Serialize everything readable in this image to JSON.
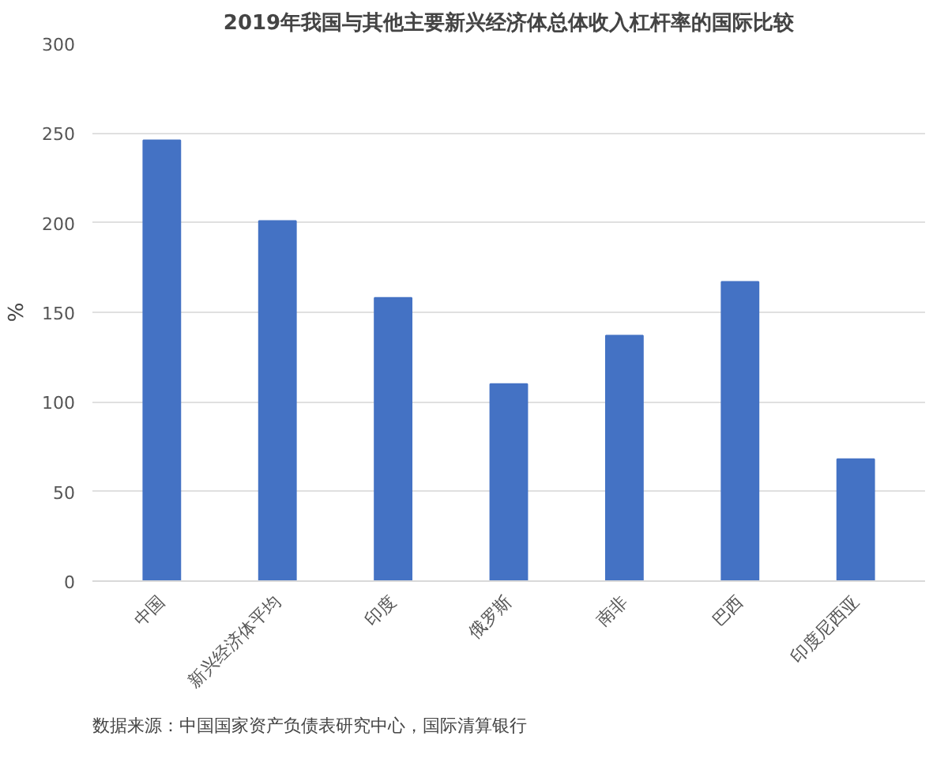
{
  "chart_data": {
    "type": "bar",
    "title": "2019年我国与其他主要新兴经济体总体收入杠杆率的国际比较",
    "ylabel": "%",
    "categories": [
      "中国",
      "新兴经济体平均",
      "印度",
      "俄罗斯",
      "南非",
      "巴西",
      "印度尼西亚"
    ],
    "values": [
      246,
      201,
      158,
      110,
      137,
      167,
      68
    ],
    "color": "#4472c4",
    "ylim": [
      0,
      300
    ],
    "yticks": [
      0,
      50,
      100,
      150,
      200,
      250,
      300
    ],
    "grid": "y",
    "annotations": [
      "数据来源：中国国家资产负债表研究中心，国际清算银行"
    ]
  }
}
